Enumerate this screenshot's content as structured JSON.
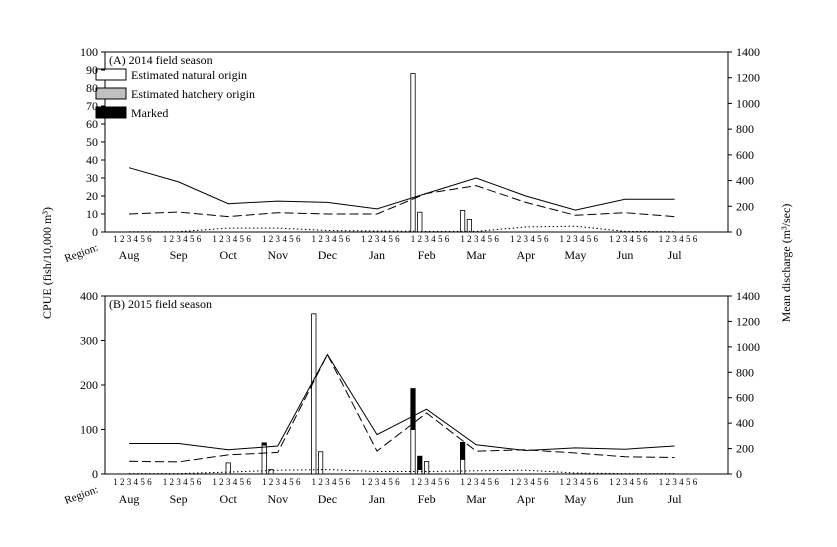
{
  "chart_data": [
    {
      "type": "bar",
      "panel": "A",
      "title": "(A) 2014 field season",
      "ylabel": "CPUE (fish/10,000 m³)",
      "y2label": "Mean discharge (m³/sec)",
      "ylim": [
        0,
        100
      ],
      "yticks": [
        0,
        10,
        20,
        30,
        40,
        50,
        60,
        70,
        80,
        90,
        100
      ],
      "y2lim": [
        0,
        1400
      ],
      "y2ticks": [
        0,
        200,
        400,
        600,
        800,
        1000,
        1200,
        1400
      ],
      "region_axis_label": "Region:",
      "region_labels": [
        "1",
        "2",
        "3",
        "4",
        "5",
        "6"
      ],
      "months": [
        "Aug",
        "Sep",
        "Oct",
        "Nov",
        "Dec",
        "Jan",
        "Feb",
        "Mar",
        "Apr",
        "May",
        "Jun",
        "Jul"
      ],
      "legend": {
        "position": "top-left",
        "entries": [
          {
            "label": "Estimated natural origin",
            "color": "#ffffff"
          },
          {
            "label": "Estimated hatchery origin",
            "color": "#c0c0c0"
          },
          {
            "label": "Marked",
            "color": "#000000"
          }
        ]
      },
      "bars": [
        {
          "month": "Feb",
          "region": 1,
          "natural": 88,
          "hatchery": 0,
          "marked": 0
        },
        {
          "month": "Feb",
          "region": 2,
          "natural": 11,
          "hatchery": 0,
          "marked": 0
        },
        {
          "month": "Mar",
          "region": 1,
          "natural": 12,
          "hatchery": 0,
          "marked": 0
        },
        {
          "month": "Mar",
          "region": 2,
          "natural": 7,
          "hatchery": 0,
          "marked": 0
        }
      ],
      "lines": [
        {
          "style": "solid",
          "values": [
            500,
            390,
            220,
            240,
            230,
            180,
            300,
            420,
            280,
            170,
            255,
            255
          ]
        },
        {
          "style": "dashed",
          "values": [
            140,
            155,
            120,
            150,
            140,
            140,
            300,
            360,
            230,
            130,
            150,
            120
          ]
        },
        {
          "style": "dotted",
          "values": [
            2,
            2,
            30,
            30,
            12,
            8,
            5,
            5,
            40,
            45,
            5,
            2
          ]
        }
      ]
    },
    {
      "type": "bar",
      "panel": "B",
      "title": "(B) 2015 field season",
      "ylim": [
        0,
        400
      ],
      "yticks": [
        0,
        100,
        200,
        300,
        400
      ],
      "y2lim": [
        0,
        1400
      ],
      "y2ticks": [
        0,
        200,
        400,
        600,
        800,
        1000,
        1200,
        1400
      ],
      "region_axis_label": "Region:",
      "region_labels": [
        "1",
        "2",
        "3",
        "4",
        "5",
        "6"
      ],
      "months": [
        "Aug",
        "Sep",
        "Oct",
        "Nov",
        "Dec",
        "Jan",
        "Feb",
        "Mar",
        "Apr",
        "May",
        "Jun",
        "Jul"
      ],
      "bars": [
        {
          "month": "Oct",
          "region": 3,
          "natural": 25,
          "hatchery": 0,
          "marked": 0
        },
        {
          "month": "Nov",
          "region": 1,
          "natural": 65,
          "hatchery": 0,
          "marked": 5
        },
        {
          "month": "Nov",
          "region": 2,
          "natural": 10,
          "hatchery": 0,
          "marked": 0
        },
        {
          "month": "Dec",
          "region": 1,
          "natural": 360,
          "hatchery": 0,
          "marked": 0
        },
        {
          "month": "Dec",
          "region": 2,
          "natural": 50,
          "hatchery": 0,
          "marked": 0
        },
        {
          "month": "Feb",
          "region": 1,
          "natural": 100,
          "hatchery": 0,
          "marked": 92
        },
        {
          "month": "Feb",
          "region": 2,
          "natural": 10,
          "hatchery": 0,
          "marked": 30
        },
        {
          "month": "Feb",
          "region": 3,
          "natural": 28,
          "hatchery": 0,
          "marked": 0
        },
        {
          "month": "Mar",
          "region": 1,
          "natural": 33,
          "hatchery": 0,
          "marked": 38
        }
      ],
      "lines": [
        {
          "style": "solid",
          "values": [
            240,
            240,
            190,
            220,
            940,
            310,
            510,
            230,
            185,
            205,
            195,
            220
          ]
        },
        {
          "style": "dashed",
          "values": [
            100,
            95,
            150,
            170,
            940,
            180,
            480,
            180,
            190,
            165,
            135,
            130
          ]
        },
        {
          "style": "dotted",
          "values": [
            3,
            3,
            15,
            30,
            35,
            20,
            20,
            25,
            30,
            8,
            3,
            3
          ]
        }
      ]
    }
  ]
}
